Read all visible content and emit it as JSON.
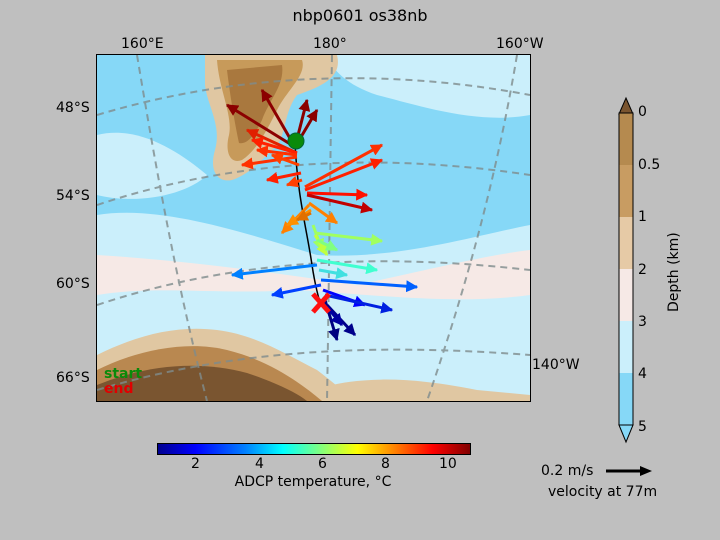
{
  "title": "nbp0601 os38nb",
  "map": {
    "lon_labels": [
      "160°E",
      "180°",
      "160°W"
    ],
    "lat_labels": [
      "48°S",
      "54°S",
      "60°S",
      "66°S"
    ],
    "side_lon_label": "140°W",
    "legend": {
      "start": "start",
      "end": "end"
    },
    "colors": {
      "start_marker": "#0a8a0a",
      "end_marker": "#e00000"
    }
  },
  "temperature_colorbar": {
    "ticks": [
      "2",
      "4",
      "6",
      "8",
      "10"
    ],
    "label": "ADCP temperature, °C",
    "range": [
      0.7,
      10.6
    ]
  },
  "depth_colorbar": {
    "ticks": [
      "0",
      "0.5",
      "1",
      "2",
      "3",
      "4",
      "5"
    ],
    "label": "Depth (km)"
  },
  "velocity_scale": {
    "text": "0.2 m/s",
    "caption": "velocity at 77m"
  }
}
